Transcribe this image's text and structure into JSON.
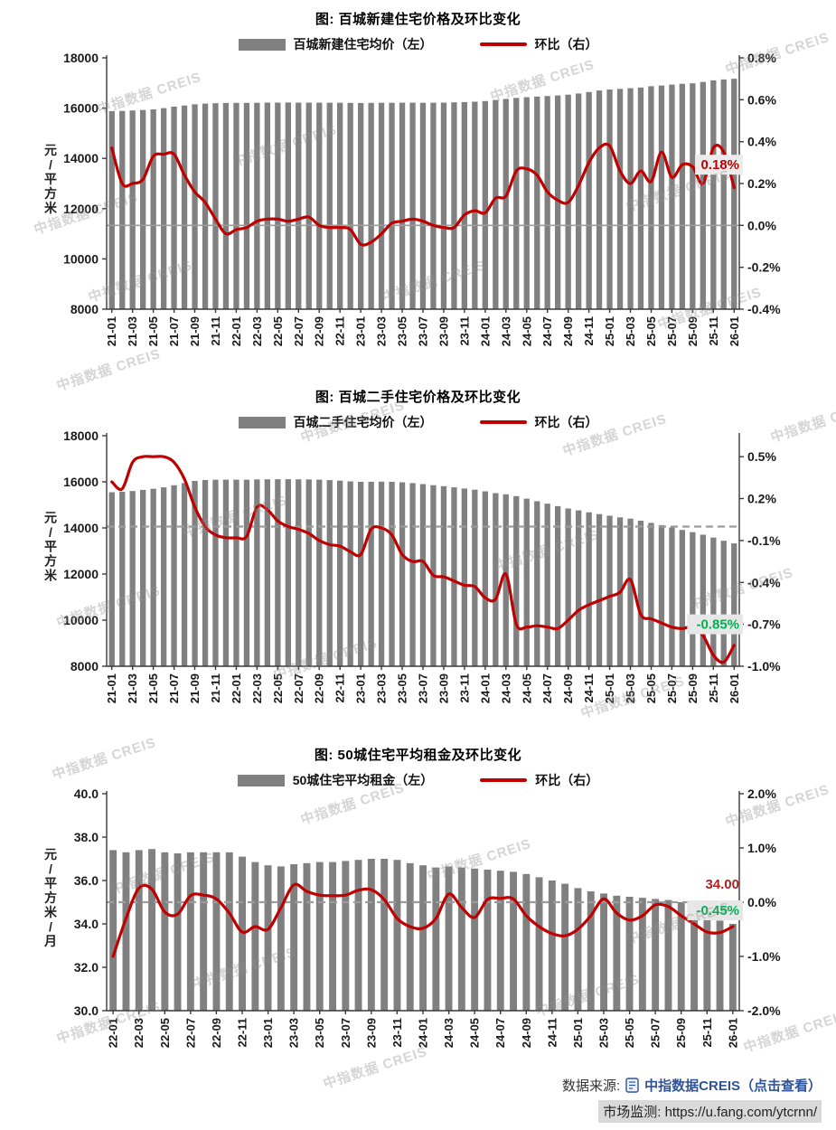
{
  "watermark": {
    "text": "中指数据 CREIS"
  },
  "footer": {
    "source_label": "数据来源:",
    "source_link": "中指数据CREIS（点击查看）",
    "monitor_label": "市场监测:",
    "monitor_url": "https://u.fang.com/ytcrnn/"
  },
  "chart_data": [
    {
      "type": "bar",
      "overlay": "line",
      "title": "图: 百城新建住宅价格及环比变化",
      "legend_bar": "百城新建住宅均价（左）",
      "legend_line": "环比（右）",
      "ylabel_left": "元/平方米",
      "left_axis": {
        "min": 8000,
        "max": 18000,
        "tick_values": [
          18000,
          16000,
          14000,
          12000,
          10000,
          8000
        ],
        "tick_labels": [
          "18000",
          "16000",
          "14000",
          "12000",
          "10000",
          "8000"
        ]
      },
      "right_axis": {
        "min": -0.4,
        "max": 0.8,
        "tick_values": [
          0.8,
          0.6,
          0.4,
          0.2,
          0.0,
          -0.2,
          -0.4
        ],
        "tick_labels": [
          "0.8%",
          "0.6%",
          "0.4%",
          "0.2%",
          "0.0%",
          "-0.2%",
          "-0.4%"
        ]
      },
      "categories": [
        "21-01",
        "21-02",
        "21-03",
        "21-04",
        "21-05",
        "21-06",
        "21-07",
        "21-08",
        "21-09",
        "21-10",
        "21-11",
        "21-12",
        "22-01",
        "22-02",
        "22-03",
        "22-04",
        "22-05",
        "22-06",
        "22-07",
        "22-08",
        "22-09",
        "22-10",
        "22-11",
        "22-12",
        "23-01",
        "23-02",
        "23-03",
        "23-04",
        "23-05",
        "23-06",
        "23-07",
        "23-08",
        "23-09",
        "23-10",
        "23-11",
        "23-12",
        "24-01",
        "24-02",
        "24-03",
        "24-04",
        "24-05",
        "24-06",
        "24-07",
        "24-08",
        "24-09",
        "24-10",
        "24-11",
        "24-12",
        "25-01",
        "25-02",
        "25-03",
        "25-04",
        "25-05",
        "25-06",
        "25-07",
        "25-08",
        "25-09",
        "25-10",
        "25-11",
        "25-12",
        "26-01"
      ],
      "x_tick_labels": [
        "21-01",
        "21-03",
        "21-05",
        "21-07",
        "21-09",
        "21-11",
        "22-01",
        "22-03",
        "22-05",
        "22-07",
        "22-09",
        "22-11",
        "23-01",
        "23-03",
        "23-05",
        "23-07",
        "23-09",
        "23-11",
        "24-01",
        "24-03",
        "24-05",
        "24-07",
        "24-09",
        "24-11",
        "25-01",
        "25-03",
        "25-05",
        "25-07",
        "25-09",
        "25-11",
        "26-01"
      ],
      "series": [
        {
          "name": "百城新建住宅均价（左）",
          "axis": "left",
          "type": "bar",
          "color": "#808080",
          "values": [
            15880,
            15890,
            15905,
            15925,
            15950,
            16000,
            16060,
            16105,
            16150,
            16180,
            16195,
            16205,
            16208,
            16210,
            16214,
            16218,
            16220,
            16222,
            16221,
            16219,
            16217,
            16215,
            16212,
            16209,
            16206,
            16208,
            16211,
            16214,
            16216,
            16216,
            16214,
            16213,
            16221,
            16231,
            16240,
            16255,
            16280,
            16322,
            16367,
            16408,
            16437,
            16460,
            16481,
            16503,
            16535,
            16582,
            16640,
            16700,
            16740,
            16765,
            16795,
            16820,
            16870,
            16900,
            16935,
            16968,
            16985,
            17040,
            17105,
            17140,
            17170
          ]
        },
        {
          "name": "环比（右）",
          "axis": "right",
          "type": "line",
          "color": "#C00000",
          "values": [
            0.37,
            0.2,
            0.2,
            0.22,
            0.33,
            0.34,
            0.34,
            0.24,
            0.16,
            0.11,
            0.03,
            -0.04,
            -0.02,
            -0.01,
            0.02,
            0.03,
            0.03,
            0.02,
            0.03,
            0.04,
            0.0,
            -0.01,
            -0.01,
            -0.02,
            -0.09,
            -0.08,
            -0.04,
            0.01,
            0.02,
            0.03,
            0.02,
            0.0,
            -0.01,
            -0.01,
            0.05,
            0.07,
            0.06,
            0.13,
            0.14,
            0.26,
            0.27,
            0.24,
            0.16,
            0.12,
            0.11,
            0.19,
            0.3,
            0.37,
            0.38,
            0.26,
            0.2,
            0.26,
            0.21,
            0.35,
            0.23,
            0.29,
            0.28,
            0.2,
            0.37,
            0.35,
            0.18
          ]
        }
      ],
      "zero_line_right": 0.0,
      "annotations": [
        {
          "text": "0.18%",
          "color": "#C00000",
          "bg": "#ECECEC",
          "yv": 0.29
        }
      ]
    },
    {
      "type": "bar",
      "overlay": "line",
      "title": "图: 百城二手住宅价格及环比变化",
      "legend_bar": "百城二手住宅均价（左）",
      "legend_line": "环比（右）",
      "ylabel_left": "元/平方米",
      "left_axis": {
        "min": 8000,
        "max": 18000,
        "tick_values": [
          18000,
          16000,
          14000,
          12000,
          10000,
          8000
        ],
        "tick_labels": [
          "18000",
          "16000",
          "14000",
          "12000",
          "10000",
          "8000"
        ]
      },
      "right_axis": {
        "min": -1.0,
        "max": 0.65,
        "tick_values": [
          0.5,
          0.2,
          -0.1,
          -0.4,
          -0.7,
          -1.0
        ],
        "tick_labels": [
          "0.5%",
          "0.2%",
          "-0.1%",
          "-0.4%",
          "-0.7%",
          "-1.0%"
        ]
      },
      "categories": [
        "21-01",
        "21-02",
        "21-03",
        "21-04",
        "21-05",
        "21-06",
        "21-07",
        "21-08",
        "21-09",
        "21-10",
        "21-11",
        "21-12",
        "22-01",
        "22-02",
        "22-03",
        "22-04",
        "22-05",
        "22-06",
        "22-07",
        "22-08",
        "22-09",
        "22-10",
        "22-11",
        "22-12",
        "23-01",
        "23-02",
        "23-03",
        "23-04",
        "23-05",
        "23-06",
        "23-07",
        "23-08",
        "23-09",
        "23-10",
        "23-11",
        "23-12",
        "24-01",
        "24-02",
        "24-03",
        "24-04",
        "24-05",
        "24-06",
        "24-07",
        "24-08",
        "24-09",
        "24-10",
        "24-11",
        "24-12",
        "25-01",
        "25-02",
        "25-03",
        "25-04",
        "25-05",
        "25-06",
        "25-07",
        "25-08",
        "25-09",
        "25-10",
        "25-11",
        "25-12",
        "26-01"
      ],
      "x_tick_labels": [
        "21-01",
        "21-03",
        "21-05",
        "21-07",
        "21-09",
        "21-11",
        "22-01",
        "22-03",
        "22-05",
        "22-07",
        "22-09",
        "22-11",
        "23-01",
        "23-03",
        "23-05",
        "23-07",
        "23-09",
        "23-11",
        "24-01",
        "24-03",
        "24-05",
        "24-07",
        "24-09",
        "24-11",
        "25-01",
        "25-03",
        "25-05",
        "25-07",
        "25-09",
        "25-11",
        "26-01"
      ],
      "series": [
        {
          "name": "百城二手住宅均价（左）",
          "axis": "left",
          "type": "bar",
          "color": "#808080",
          "values": [
            15550,
            15570,
            15600,
            15650,
            15700,
            15760,
            15850,
            15950,
            16040,
            16080,
            16090,
            16095,
            16095,
            16095,
            16105,
            16110,
            16112,
            16112,
            16110,
            16105,
            16095,
            16075,
            16050,
            16020,
            16000,
            16002,
            16008,
            16000,
            15980,
            15945,
            15900,
            15855,
            15810,
            15760,
            15710,
            15660,
            15590,
            15510,
            15460,
            15380,
            15270,
            15160,
            15050,
            14945,
            14845,
            14760,
            14680,
            14600,
            14530,
            14460,
            14405,
            14315,
            14220,
            14120,
            14020,
            13915,
            13815,
            13705,
            13580,
            13445,
            13330
          ]
        },
        {
          "name": "环比（右）",
          "axis": "right",
          "type": "line",
          "color": "#C00000",
          "values": [
            0.32,
            0.27,
            0.46,
            0.5,
            0.5,
            0.5,
            0.46,
            0.34,
            0.14,
            0.0,
            -0.06,
            -0.08,
            -0.08,
            -0.07,
            0.14,
            0.12,
            0.04,
            0.0,
            -0.02,
            -0.05,
            -0.1,
            -0.13,
            -0.14,
            -0.18,
            -0.2,
            -0.02,
            -0.01,
            -0.06,
            -0.2,
            -0.25,
            -0.25,
            -0.35,
            -0.36,
            -0.39,
            -0.42,
            -0.43,
            -0.51,
            -0.52,
            -0.34,
            -0.7,
            -0.72,
            -0.71,
            -0.72,
            -0.73,
            -0.67,
            -0.6,
            -0.56,
            -0.53,
            -0.5,
            -0.47,
            -0.38,
            -0.63,
            -0.66,
            -0.69,
            -0.72,
            -0.73,
            -0.72,
            -0.78,
            -0.92,
            -0.97,
            -0.85
          ]
        }
      ],
      "zero_line_right": 0.0,
      "annotations": [
        {
          "text": "-0.85%",
          "color": "#00B050",
          "bg": "#E7E7E7",
          "yv": -0.7
        }
      ]
    },
    {
      "type": "bar",
      "overlay": "line",
      "title": "图: 50城住宅平均租金及环比变化",
      "legend_bar": "50城住宅平均租金（左）",
      "legend_line": "环比（右）",
      "ylabel_left": "元/平方米/月",
      "left_axis": {
        "min": 30,
        "max": 40,
        "tick_values": [
          40,
          38,
          36,
          34,
          32,
          30
        ],
        "tick_labels": [
          "40.0",
          "38.0",
          "36.0",
          "34.0",
          "32.0",
          "30.0"
        ]
      },
      "right_axis": {
        "min": -2.0,
        "max": 2.0,
        "tick_values": [
          2.0,
          1.0,
          0.0,
          -1.0,
          -2.0
        ],
        "tick_labels": [
          "2.0%",
          "1.0%",
          "0.0%",
          "-1.0%",
          "-2.0%"
        ]
      },
      "categories": [
        "22-01",
        "22-02",
        "22-03",
        "22-04",
        "22-05",
        "22-06",
        "22-07",
        "22-08",
        "22-09",
        "22-10",
        "22-11",
        "22-12",
        "23-01",
        "23-02",
        "23-03",
        "23-04",
        "23-05",
        "23-06",
        "23-07",
        "23-08",
        "23-09",
        "23-10",
        "23-11",
        "23-12",
        "24-01",
        "24-02",
        "24-03",
        "24-04",
        "24-05",
        "24-06",
        "24-07",
        "24-08",
        "24-09",
        "24-10",
        "24-11",
        "24-12",
        "25-01",
        "25-02",
        "25-03",
        "25-04",
        "25-05",
        "25-06",
        "25-07",
        "25-08",
        "25-09",
        "25-10",
        "25-11",
        "25-12",
        "26-01"
      ],
      "x_tick_labels": [
        "22-01",
        "22-03",
        "22-05",
        "22-07",
        "22-09",
        "22-11",
        "23-01",
        "23-03",
        "23-05",
        "23-07",
        "23-09",
        "23-11",
        "24-01",
        "24-03",
        "24-05",
        "24-07",
        "24-09",
        "24-11",
        "25-01",
        "25-03",
        "25-05",
        "25-07",
        "25-09",
        "25-11",
        "26-01"
      ],
      "series": [
        {
          "name": "50城住宅平均租金（左）",
          "axis": "left",
          "type": "bar",
          "color": "#808080",
          "values": [
            37.4,
            37.3,
            37.4,
            37.45,
            37.3,
            37.25,
            37.3,
            37.3,
            37.3,
            37.3,
            37.1,
            36.85,
            36.7,
            36.65,
            36.75,
            36.8,
            36.85,
            36.85,
            36.9,
            36.95,
            37.0,
            37.0,
            36.95,
            36.8,
            36.7,
            36.6,
            36.65,
            36.6,
            36.55,
            36.5,
            36.45,
            36.4,
            36.3,
            36.15,
            36.0,
            35.85,
            35.65,
            35.5,
            35.4,
            35.3,
            35.25,
            35.2,
            35.15,
            35.1,
            35.0,
            34.75,
            34.45,
            34.15,
            34.0
          ]
        },
        {
          "name": "环比（右）",
          "axis": "right",
          "type": "line",
          "color": "#C00000",
          "values": [
            -1.0,
            -0.3,
            0.26,
            0.24,
            -0.18,
            -0.22,
            0.12,
            0.13,
            0.06,
            -0.2,
            -0.55,
            -0.45,
            -0.5,
            -0.1,
            0.32,
            0.2,
            0.13,
            0.12,
            0.13,
            0.22,
            0.23,
            0.05,
            -0.3,
            -0.45,
            -0.48,
            -0.3,
            0.15,
            -0.1,
            -0.28,
            0.05,
            0.07,
            0.06,
            -0.25,
            -0.45,
            -0.58,
            -0.62,
            -0.5,
            -0.25,
            0.06,
            -0.2,
            -0.33,
            -0.25,
            -0.05,
            -0.08,
            -0.25,
            -0.4,
            -0.55,
            -0.56,
            -0.45
          ]
        }
      ],
      "zero_line_right": 0.0,
      "annotations": [
        {
          "text": "34.00",
          "color": "#B22222",
          "bg": null,
          "yv": 0.33
        },
        {
          "text": "-0.45%",
          "color": "#00B050",
          "bg": "#E7E7E7",
          "yv": -0.15
        }
      ]
    }
  ]
}
